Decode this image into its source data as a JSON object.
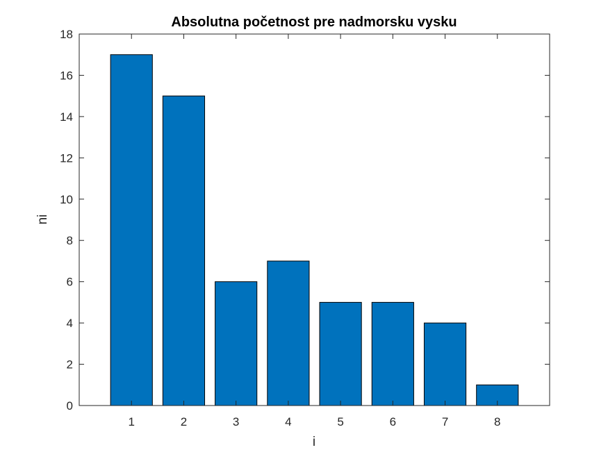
{
  "chart_data": {
    "type": "bar",
    "title": "Absolutna početnost pre nadmorsku vysku",
    "xlabel": "i",
    "ylabel": "ni",
    "categories": [
      "1",
      "2",
      "3",
      "4",
      "5",
      "6",
      "7",
      "8"
    ],
    "values": [
      17,
      15,
      6,
      7,
      5,
      5,
      4,
      1
    ],
    "xlim": [
      0,
      9
    ],
    "ylim": [
      0,
      18
    ],
    "yticks": [
      0,
      2,
      4,
      6,
      8,
      10,
      12,
      14,
      16,
      18
    ],
    "grid": false,
    "legend": "none",
    "bar_color": "#0072BD",
    "bar_edge_color": "#000000"
  }
}
